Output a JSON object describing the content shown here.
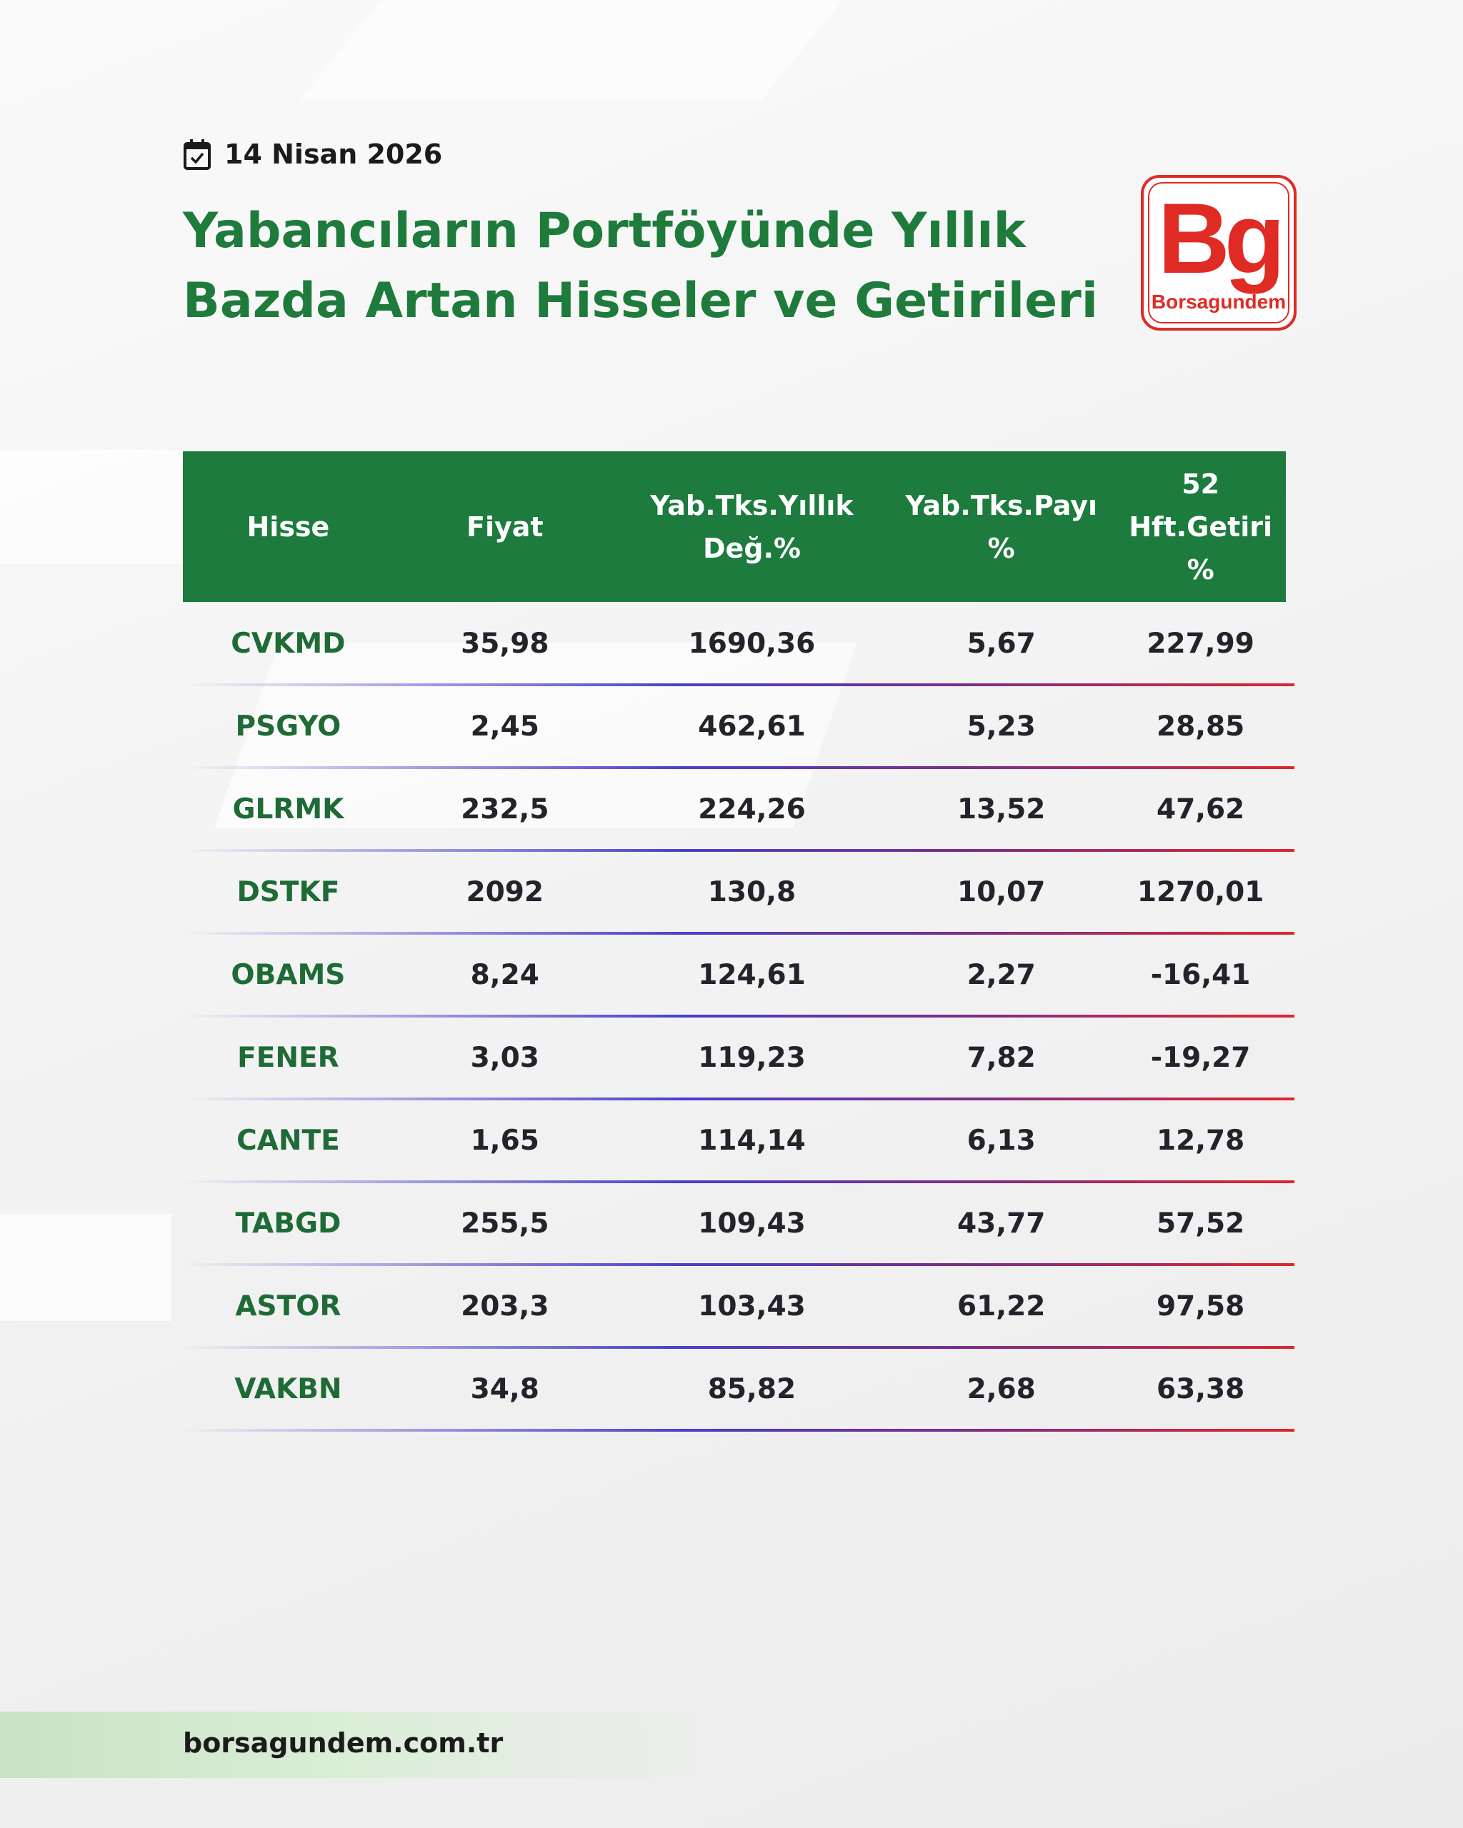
{
  "date": {
    "icon": "calendar-check-icon",
    "text": "14 Nisan 2026"
  },
  "title": {
    "line1": "Yabancıların Portföyünde Yıllık",
    "line2": "Bazda Artan Hisseler ve Getirileri"
  },
  "logo": {
    "mark": "Bg",
    "name": "Borsagundem"
  },
  "colors": {
    "header_bg": "#1c7b3d",
    "title": "#1e7b3c",
    "brand_red": "#e02a24"
  },
  "table": {
    "headers": [
      "Hisse",
      "Fiyat",
      "Yab.Tks.Yıllık Değ.%",
      "Yab.Tks.Payı %",
      "52 Hft.Getiri %"
    ],
    "rows": [
      [
        "CVKMD",
        "35,98",
        "1690,36",
        "5,67",
        "227,99"
      ],
      [
        "PSGYO",
        "2,45",
        "462,61",
        "5,23",
        "28,85"
      ],
      [
        "GLRMK",
        "232,5",
        "224,26",
        "13,52",
        "47,62"
      ],
      [
        "DSTKF",
        "2092",
        "130,8",
        "10,07",
        "1270,01"
      ],
      [
        "OBAMS",
        "8,24",
        "124,61",
        "2,27",
        "-16,41"
      ],
      [
        "FENER",
        "3,03",
        "119,23",
        "7,82",
        "-19,27"
      ],
      [
        "CANTE",
        "1,65",
        "114,14",
        "6,13",
        "12,78"
      ],
      [
        "TABGD",
        "255,5",
        "109,43",
        "43,77",
        "57,52"
      ],
      [
        "ASTOR",
        "203,3",
        "103,43",
        "61,22",
        "97,58"
      ],
      [
        "VAKBN",
        "34,8",
        "85,82",
        "2,68",
        "63,38"
      ]
    ]
  },
  "footer": {
    "url": "borsagundem.com.tr"
  }
}
